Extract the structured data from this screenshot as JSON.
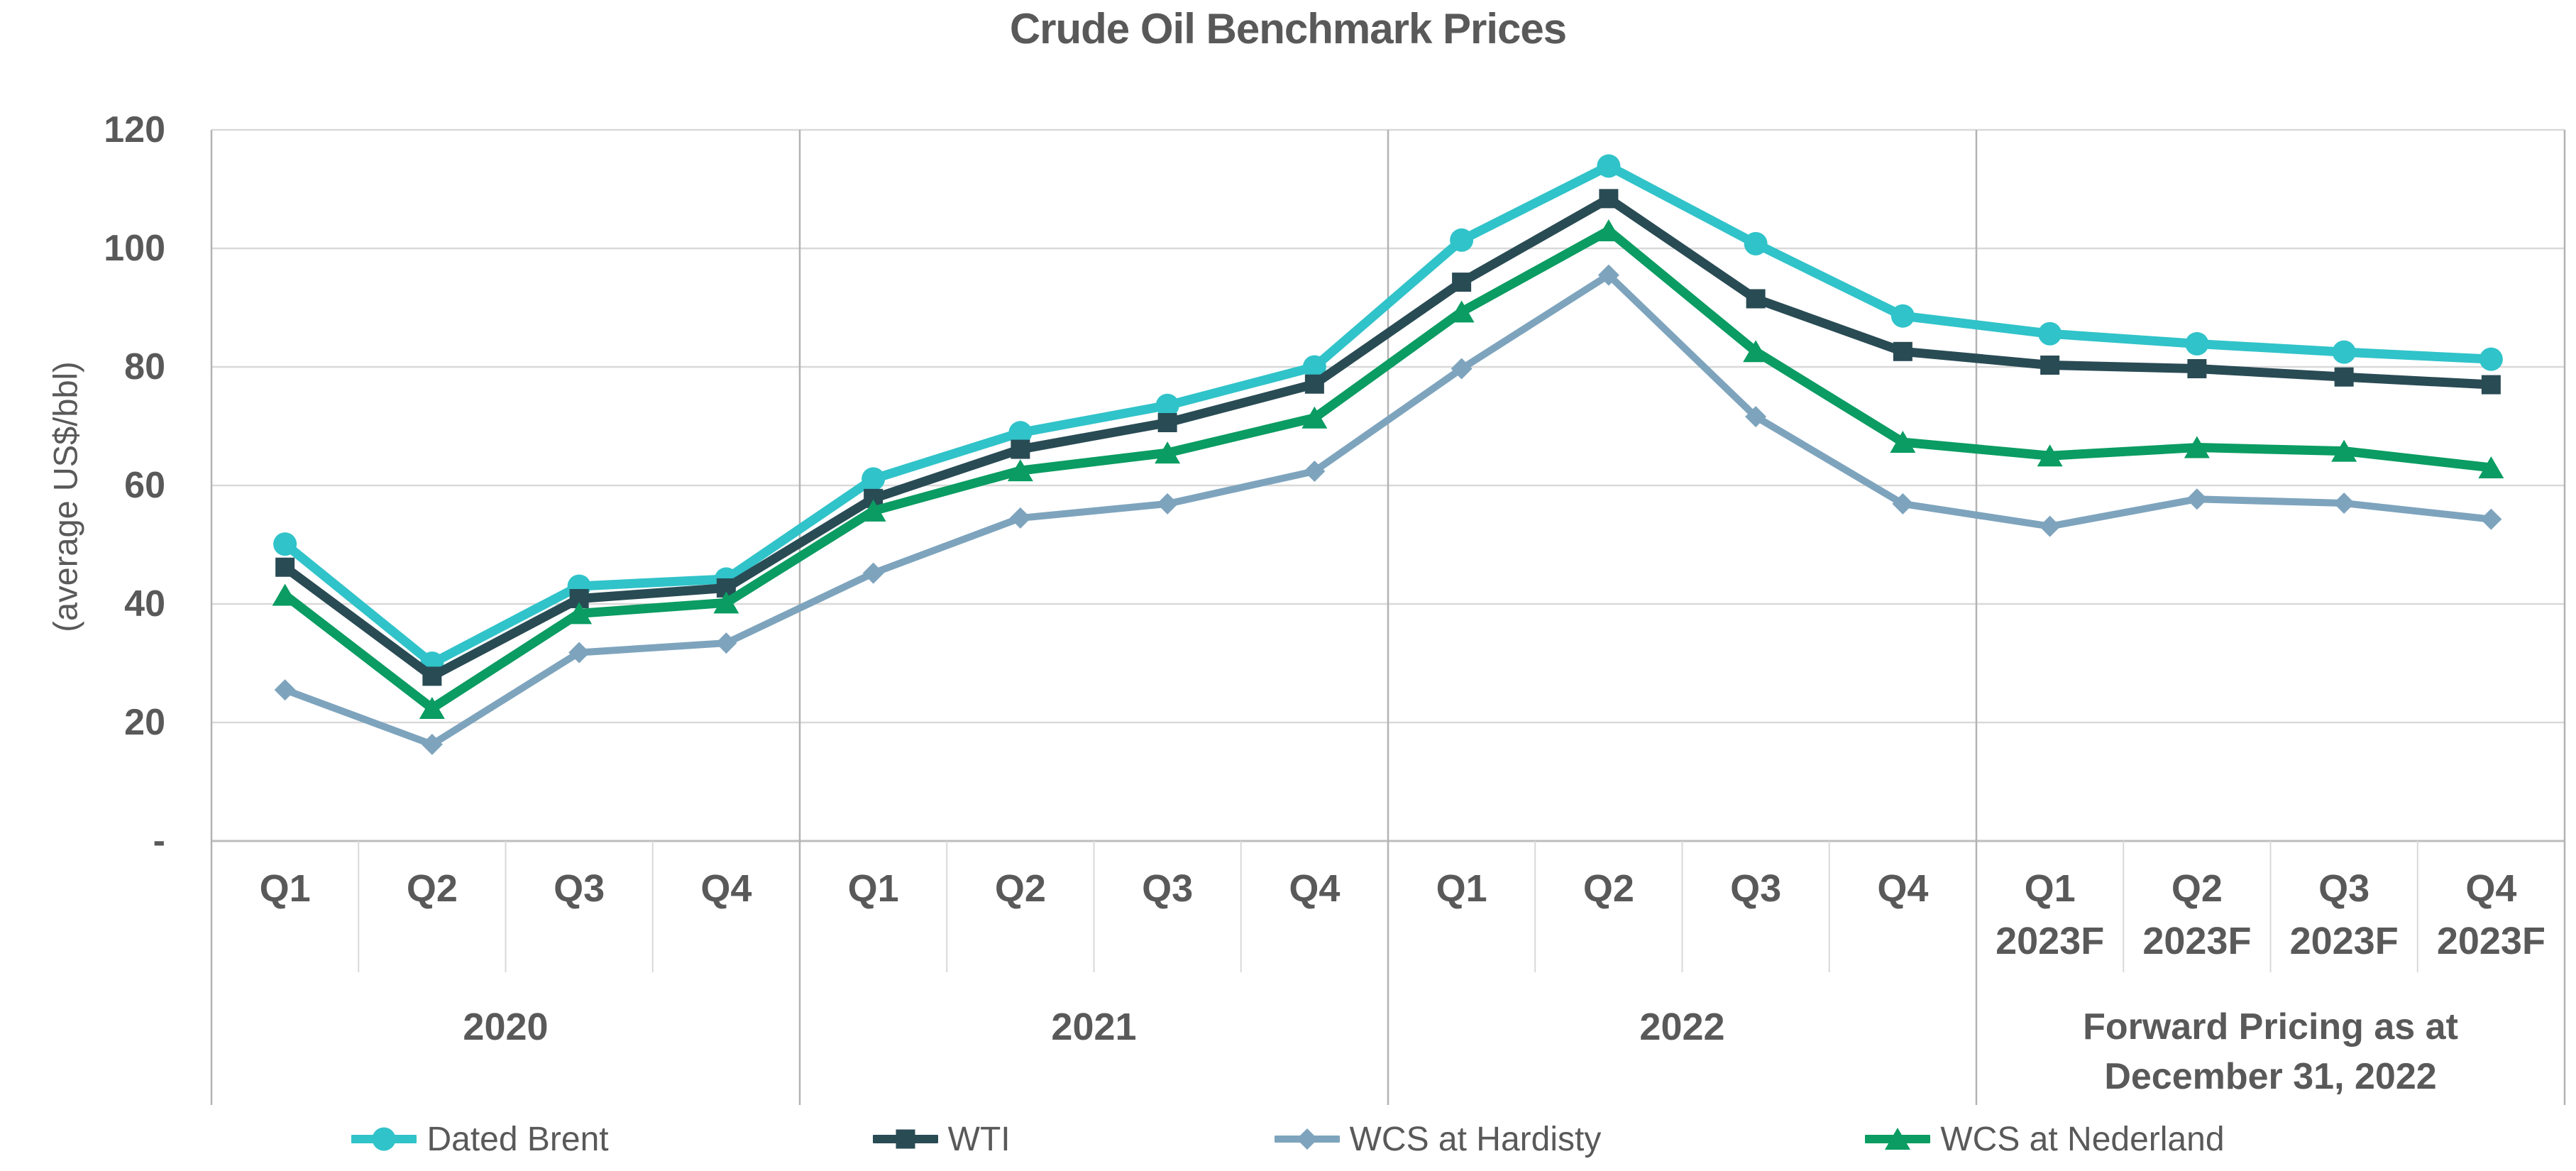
{
  "chart_data": {
    "type": "line",
    "title": "Crude Oil Benchmark Prices",
    "ylabel": "(average US$/bbl)",
    "ylim": [
      0,
      120
    ],
    "ytick_step": 20,
    "ytick_labels": [
      "-",
      "20",
      "40",
      "60",
      "80",
      "100",
      "120"
    ],
    "grid": true,
    "legend_position": "bottom",
    "colors": {
      "grid": "#D9D9D9",
      "axis": "#BDBDBD",
      "group_separator": "#B3B3B3",
      "quarter_tick": "#D9D9D9",
      "text": "#595959"
    },
    "x_groups": [
      {
        "label_lines": [
          "2020"
        ],
        "quarters": [
          "Q1",
          "Q2",
          "Q3",
          "Q4"
        ]
      },
      {
        "label_lines": [
          "2021"
        ],
        "quarters": [
          "Q1",
          "Q2",
          "Q3",
          "Q4"
        ]
      },
      {
        "label_lines": [
          "2022"
        ],
        "quarters": [
          "Q1",
          "Q2",
          "Q3",
          "Q4"
        ]
      },
      {
        "label_lines": [
          "Forward Pricing as at",
          "December 31, 2022"
        ],
        "quarters": [
          "Q1",
          "Q2",
          "Q3",
          "Q4"
        ],
        "quarter_sublabel": "2023F"
      }
    ],
    "categories": [
      "Q1 2020",
      "Q2 2020",
      "Q3 2020",
      "Q4 2020",
      "Q1 2021",
      "Q2 2021",
      "Q3 2021",
      "Q4 2021",
      "Q1 2022",
      "Q2 2022",
      "Q3 2022",
      "Q4 2022",
      "Q1 2023F",
      "Q2 2023F",
      "Q3 2023F",
      "Q4 2023F"
    ],
    "series": [
      {
        "name": "Dated Brent",
        "marker": "circle",
        "color": "#30C3C9",
        "values": [
          50.1,
          30.0,
          43.0,
          44.2,
          61.1,
          68.9,
          73.5,
          80.0,
          101.4,
          113.9,
          100.8,
          88.6,
          85.6,
          83.9,
          82.5,
          81.3
        ]
      },
      {
        "name": "WTI",
        "marker": "square",
        "color": "#294B54",
        "values": [
          46.2,
          27.8,
          40.9,
          42.7,
          57.8,
          66.1,
          70.6,
          77.1,
          94.3,
          108.4,
          91.5,
          82.6,
          80.3,
          79.7,
          78.3,
          77.0
        ]
      },
      {
        "name": "WCS at Hardisty",
        "marker": "diamond",
        "color": "#7EA4BD",
        "values": [
          25.5,
          16.3,
          31.8,
          33.4,
          45.2,
          54.5,
          56.9,
          62.4,
          79.7,
          95.5,
          71.6,
          56.9,
          53.1,
          57.7,
          57.0,
          54.3
        ]
      },
      {
        "name": "WCS at Nederland",
        "marker": "triangle",
        "color": "#0A9C62",
        "values": [
          41.5,
          22.4,
          38.4,
          40.2,
          55.7,
          62.5,
          65.5,
          71.4,
          89.3,
          103.0,
          82.6,
          67.3,
          65.0,
          66.4,
          65.8,
          63.0
        ]
      }
    ]
  }
}
